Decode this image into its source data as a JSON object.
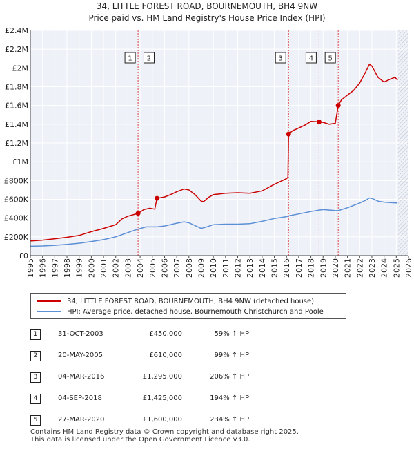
{
  "header": {
    "title_line1": "34, LITTLE FOREST ROAD, BOURNEMOUTH, BH4 9NW",
    "title_line2": "Price paid vs. HM Land Registry's House Price Index (HPI)"
  },
  "chart_data": {
    "type": "line",
    "ylim": [
      0,
      2400000
    ],
    "xlim": [
      1995,
      2026
    ],
    "y_ticks": [
      {
        "value": 0,
        "label": "£0"
      },
      {
        "value": 200000,
        "label": "£200K"
      },
      {
        "value": 400000,
        "label": "£400K"
      },
      {
        "value": 600000,
        "label": "£600K"
      },
      {
        "value": 800000,
        "label": "£800K"
      },
      {
        "value": 1000000,
        "label": "£1M"
      },
      {
        "value": 1200000,
        "label": "£1.2M"
      },
      {
        "value": 1400000,
        "label": "£1.4M"
      },
      {
        "value": 1600000,
        "label": "£1.6M"
      },
      {
        "value": 1800000,
        "label": "£1.8M"
      },
      {
        "value": 2000000,
        "label": "£2M"
      },
      {
        "value": 2200000,
        "label": "£2.2M"
      },
      {
        "value": 2400000,
        "label": "£2.4M"
      }
    ],
    "x_ticks": [
      "1995",
      "1996",
      "1997",
      "1998",
      "1999",
      "2000",
      "2001",
      "2002",
      "2003",
      "2004",
      "2005",
      "2006",
      "2007",
      "2008",
      "2009",
      "2010",
      "2011",
      "2012",
      "2013",
      "2014",
      "2015",
      "2016",
      "2017",
      "2018",
      "2019",
      "2020",
      "2021",
      "2022",
      "2023",
      "2024",
      "2025",
      "2026"
    ],
    "series": [
      {
        "name": "34, LITTLE FOREST ROAD, BOURNEMOUTH, BH4 9NW (detached house)",
        "color": "#cc0000",
        "x": [
          1995.0,
          1996.0,
          1997.0,
          1998.0,
          1999.0,
          2000.0,
          2001.0,
          2002.0,
          2002.5,
          2003.0,
          2003.83,
          2004.3,
          2004.8,
          2005.2,
          2005.38,
          2006.0,
          2006.5,
          2007.0,
          2007.6,
          2008.0,
          2008.5,
          2009.0,
          2009.2,
          2009.6,
          2010.0,
          2011.0,
          2012.0,
          2013.0,
          2014.0,
          2015.0,
          2015.5,
          2016.0,
          2016.12,
          2016.17,
          2016.5,
          2017.0,
          2017.5,
          2018.0,
          2018.67,
          2019.0,
          2019.5,
          2020.0,
          2020.24,
          2020.5,
          2021.0,
          2021.5,
          2022.0,
          2022.5,
          2022.8,
          2023.0,
          2023.5,
          2024.0,
          2024.5,
          2024.9,
          2025.1
        ],
        "values": [
          155000,
          165000,
          180000,
          195000,
          215000,
          255000,
          290000,
          330000,
          390000,
          420000,
          450000,
          490000,
          505000,
          495000,
          610000,
          625000,
          650000,
          680000,
          710000,
          700000,
          650000,
          580000,
          575000,
          620000,
          650000,
          665000,
          670000,
          665000,
          690000,
          760000,
          790000,
          820000,
          835000,
          1295000,
          1330000,
          1360000,
          1390000,
          1430000,
          1425000,
          1420000,
          1400000,
          1410000,
          1600000,
          1660000,
          1710000,
          1760000,
          1840000,
          1960000,
          2040000,
          2020000,
          1900000,
          1850000,
          1880000,
          1900000,
          1870000
        ]
      },
      {
        "name": "HPI: Average price, detached house, Bournemouth Christchurch and Poole",
        "color": "#5b8fd6",
        "x": [
          1995.0,
          1996.0,
          1997.0,
          1998.0,
          1999.0,
          2000.0,
          2001.0,
          2002.0,
          2003.0,
          2003.83,
          2004.5,
          2005.38,
          2006.0,
          2007.0,
          2007.6,
          2008.0,
          2008.5,
          2009.0,
          2009.3,
          2010.0,
          2011.0,
          2012.0,
          2013.0,
          2014.0,
          2015.0,
          2016.0,
          2016.17,
          2017.0,
          2018.0,
          2018.67,
          2019.0,
          2020.0,
          2020.24,
          2021.0,
          2021.5,
          2022.0,
          2022.5,
          2022.8,
          2023.0,
          2023.5,
          2024.0,
          2024.5,
          2025.1
        ],
        "values": [
          100000,
          103000,
          110000,
          120000,
          132000,
          150000,
          170000,
          200000,
          245000,
          283000,
          306000,
          306000,
          316000,
          345000,
          360000,
          350000,
          320000,
          290000,
          300000,
          330000,
          335000,
          335000,
          340000,
          365000,
          395000,
          415000,
          423000,
          444000,
          470000,
          485000,
          490000,
          480000,
          479000,
          510000,
          535000,
          560000,
          590000,
          615000,
          610000,
          580000,
          570000,
          565000,
          560000
        ]
      }
    ],
    "sale_markers": [
      {
        "label": "1",
        "x": 2003.83,
        "value": 450000
      },
      {
        "label": "2",
        "x": 2005.38,
        "value": 610000
      },
      {
        "label": "3",
        "x": 2016.17,
        "value": 1295000
      },
      {
        "label": "4",
        "x": 2018.67,
        "value": 1425000
      },
      {
        "label": "5",
        "x": 2020.24,
        "value": 1600000
      }
    ],
    "shaded_end": 2025.15
  },
  "legend": {
    "red_label": "34, LITTLE FOREST ROAD, BOURNEMOUTH, BH4 9NW (detached house)",
    "blue_label": "HPI: Average price, detached house, Bournemouth Christchurch and Poole"
  },
  "sales": [
    {
      "num": "1",
      "date": "31-OCT-2003",
      "price": "£450,000",
      "hpi": "59% ↑ HPI"
    },
    {
      "num": "2",
      "date": "20-MAY-2005",
      "price": "£610,000",
      "hpi": "99% ↑ HPI"
    },
    {
      "num": "3",
      "date": "04-MAR-2016",
      "price": "£1,295,000",
      "hpi": "206% ↑ HPI"
    },
    {
      "num": "4",
      "date": "04-SEP-2018",
      "price": "£1,425,000",
      "hpi": "194% ↑ HPI"
    },
    {
      "num": "5",
      "date": "27-MAR-2020",
      "price": "£1,600,000",
      "hpi": "234% ↑ HPI"
    }
  ],
  "footer": {
    "line1": "Contains HM Land Registry data © Crown copyright and database right 2025.",
    "line2": "This data is licensed under the Open Government Licence v3.0."
  }
}
